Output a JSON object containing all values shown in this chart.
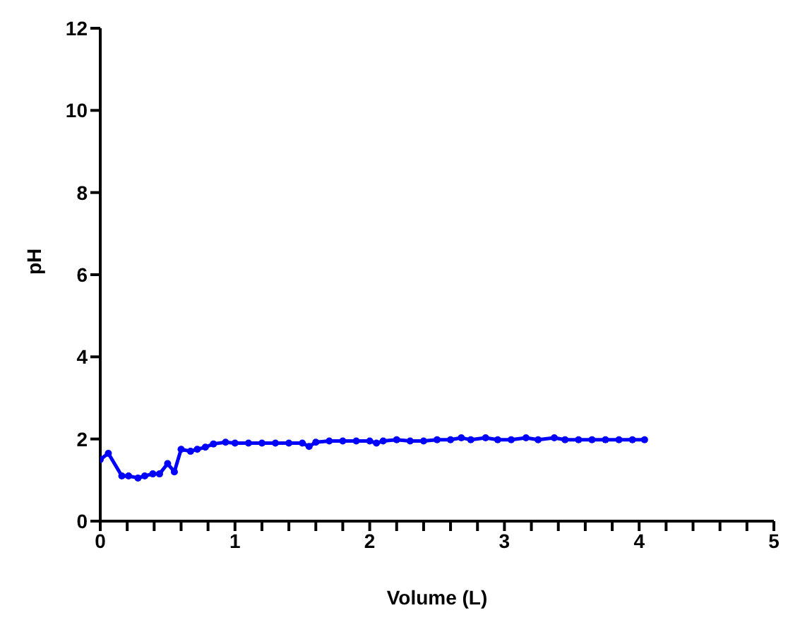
{
  "chart_data": {
    "type": "line",
    "xlabel": "Volume (L)",
    "ylabel": "pH",
    "x": [
      0,
      0.06,
      0.16,
      0.21,
      0.28,
      0.33,
      0.39,
      0.44,
      0.5,
      0.55,
      0.6,
      0.67,
      0.72,
      0.78,
      0.84,
      0.93,
      1.0,
      1.1,
      1.2,
      1.3,
      1.4,
      1.5,
      1.55,
      1.6,
      1.7,
      1.8,
      1.9,
      2.0,
      2.05,
      2.1,
      2.2,
      2.3,
      2.4,
      2.5,
      2.6,
      2.68,
      2.75,
      2.86,
      2.95,
      3.05,
      3.16,
      3.25,
      3.37,
      3.45,
      3.55,
      3.65,
      3.75,
      3.85,
      3.95,
      4.04
    ],
    "series": [
      {
        "color": "#0000ff",
        "values": [
          1.5,
          1.65,
          1.1,
          1.1,
          1.05,
          1.1,
          1.15,
          1.15,
          1.4,
          1.2,
          1.75,
          1.7,
          1.75,
          1.8,
          1.88,
          1.92,
          1.9,
          1.9,
          1.9,
          1.9,
          1.9,
          1.9,
          1.82,
          1.92,
          1.95,
          1.95,
          1.95,
          1.95,
          1.9,
          1.95,
          1.98,
          1.95,
          1.95,
          1.98,
          1.98,
          2.03,
          1.98,
          2.03,
          1.98,
          1.98,
          2.03,
          1.98,
          2.03,
          1.98,
          1.98,
          1.98,
          1.98,
          1.98,
          1.98,
          1.98
        ]
      }
    ],
    "xlim": [
      0,
      5
    ],
    "ylim": [
      0,
      12
    ],
    "xticks": [
      0,
      {
        "value": 0.2,
        "label": null
      },
      {
        "value": 0.4,
        "label": null
      },
      {
        "value": 0.6,
        "label": null
      },
      {
        "value": 0.8,
        "label": null
      },
      1,
      {
        "value": 1.2,
        "label": null
      },
      {
        "value": 1.4,
        "label": null
      },
      {
        "value": 1.6,
        "label": null
      },
      {
        "value": 1.8,
        "label": null
      },
      2,
      {
        "value": 2.2,
        "label": null
      },
      {
        "value": 2.4,
        "label": null
      },
      {
        "value": 2.6,
        "label": null
      },
      {
        "value": 2.8,
        "label": null
      },
      3,
      {
        "value": 3.2,
        "label": null
      },
      {
        "value": 3.4,
        "label": null
      },
      {
        "value": 3.6,
        "label": null
      },
      {
        "value": 3.8,
        "label": null
      },
      4,
      {
        "value": 4.2,
        "label": null
      },
      {
        "value": 4.4,
        "label": null
      },
      {
        "value": 4.6,
        "label": null
      },
      {
        "value": 4.8,
        "label": null
      },
      5
    ],
    "yticks": [
      0,
      2,
      4,
      6,
      8,
      10,
      12
    ],
    "grid": false,
    "legend": false,
    "marker": "circle",
    "line_style": "solid"
  }
}
